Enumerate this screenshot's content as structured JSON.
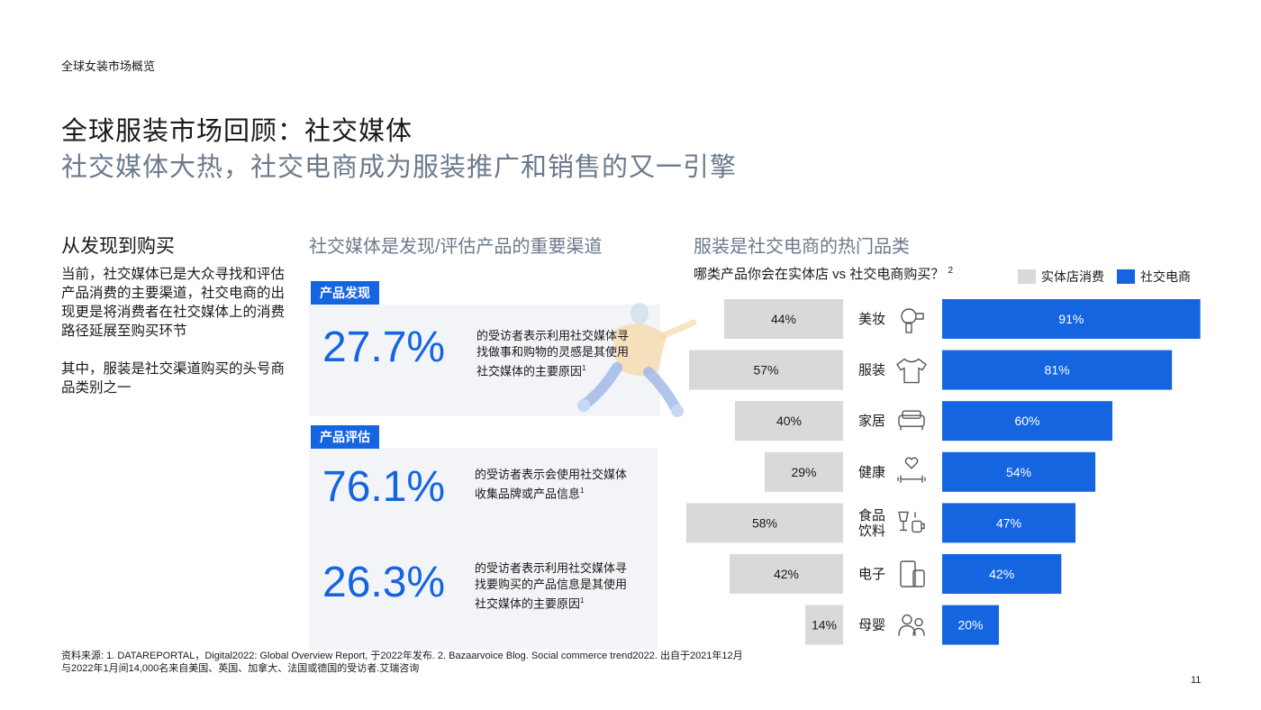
{
  "header": {
    "section_label": "全球女装市场概览",
    "title": "全球服装市场回顾：社交媒体",
    "subtitle": "社交媒体大热，社交电商成为服装推广和销售的又一引擎"
  },
  "left": {
    "heading": "从发现到购买",
    "para1": "当前，社交媒体已是大众寻找和评估产品消费的主要渠道，社交电商的出现更是将消费者在社交媒体上的消费路径延展至购买环节",
    "para2": "其中，服装是社交渠道购买的头号商品类别之一"
  },
  "middle": {
    "heading": "社交媒体是发现/评估产品的重要渠道",
    "discovery": {
      "tag": "产品发现",
      "stat": "27.7%",
      "desc": "的受访者表示利用社交媒体寻找做事和购物的灵感是其使用社交媒体的主要原因",
      "sup": "1"
    },
    "evaluation": {
      "tag": "产品评估",
      "stat1": "76.1%",
      "desc1": "的受访者表示会使用社交媒体收集品牌或产品信息",
      "sup1": "1",
      "stat2": "26.3%",
      "desc2": "的受访者表示利用社交媒体寻找要购买的产品信息是其使用社交媒体的主要原因",
      "sup2": "1"
    }
  },
  "right": {
    "heading": "服装是社交电商的热门品类",
    "question": "哪类产品你会在实体店 vs 社交电商购买？",
    "question_sup": "2"
  },
  "chart_data": {
    "type": "bar",
    "orientation": "horizontal-butterfly",
    "categories": [
      "美妆",
      "服装",
      "家居",
      "健康",
      "食品饮料",
      "电子",
      "母婴"
    ],
    "category_lines": [
      [
        "美妆"
      ],
      [
        "服装"
      ],
      [
        "家居"
      ],
      [
        "健康"
      ],
      [
        "食品",
        "饮料"
      ],
      [
        "电子"
      ],
      [
        "母婴"
      ]
    ],
    "icons": [
      "hairdryer-icon",
      "tshirt-icon",
      "sofa-icon",
      "heart-dumbbell-icon",
      "food-drink-icon",
      "phone-tablet-icon",
      "people-icon"
    ],
    "series": [
      {
        "name": "实体店消费",
        "values": [
          44,
          57,
          40,
          29,
          58,
          42,
          14
        ],
        "color": "#d9d9d9"
      },
      {
        "name": "社交电商",
        "values": [
          91,
          81,
          60,
          54,
          47,
          42,
          20
        ],
        "color": "#1565e0"
      }
    ],
    "value_suffix": "%",
    "legend_position": "top-right"
  },
  "footer": {
    "source": "资料来源: 1. DATAREPORTAL，Digital2022: Global Overview Report, 于2022年发布. 2. Bazaarvoice Blog.  Social commerce trend2022. 出自于2021年12月与2022年1月间14,000名来自美国、英国、加拿大、法国或德国的受访者.艾瑞咨询",
    "page_number": "11"
  }
}
